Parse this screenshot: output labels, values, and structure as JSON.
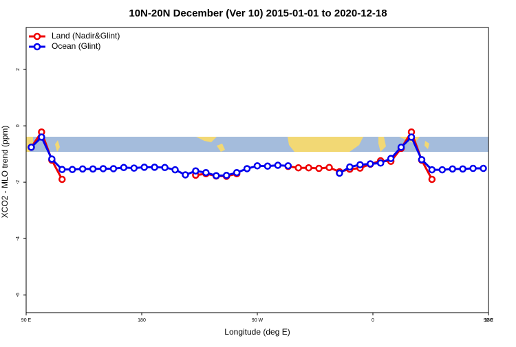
{
  "chart_data": {
    "type": "line",
    "title": "10N-20N December (Ver 10)   2015-01-01 to 2020-12-18",
    "x_label": "Longitude (deg E)",
    "y_label": "XCO2 - MLO trend (ppm)",
    "x": [
      94,
      102,
      110,
      118,
      126,
      134,
      142,
      150,
      158,
      166,
      174,
      182,
      190,
      198,
      206,
      214,
      222,
      230,
      238,
      246,
      254,
      262,
      270,
      278,
      286,
      294,
      302,
      310,
      318,
      326,
      334,
      342,
      350,
      358,
      366,
      374,
      382,
      390,
      398,
      406,
      414,
      422,
      430,
      438,
      446
    ],
    "series": [
      {
        "name": "Land (Nadir&Glint)",
        "color": "#ee0000",
        "values": [
          -0.76,
          -0.22,
          -1.22,
          -1.9,
          null,
          null,
          null,
          null,
          null,
          null,
          null,
          null,
          null,
          null,
          null,
          null,
          -1.75,
          -1.7,
          -1.78,
          -1.79,
          -1.7,
          null,
          null,
          null,
          null,
          -1.44,
          -1.49,
          -1.49,
          -1.51,
          -1.48,
          -1.63,
          -1.54,
          -1.5,
          -1.36,
          -1.24,
          -1.26,
          -0.8,
          -0.22,
          -1.22,
          -1.9,
          null,
          null,
          null,
          null,
          null
        ]
      },
      {
        "name": "Ocean (Glint)",
        "color": "#0000ee",
        "values": [
          -0.76,
          -0.4,
          -1.18,
          -1.55,
          -1.55,
          -1.53,
          -1.53,
          -1.52,
          -1.52,
          -1.48,
          -1.5,
          -1.47,
          -1.47,
          -1.48,
          -1.56,
          -1.74,
          -1.6,
          -1.66,
          -1.77,
          -1.76,
          -1.66,
          -1.52,
          -1.42,
          -1.43,
          -1.4,
          -1.42,
          null,
          null,
          null,
          null,
          -1.68,
          -1.46,
          -1.38,
          -1.35,
          -1.32,
          -1.16,
          -0.76,
          -0.4,
          -1.2,
          -1.56,
          -1.56,
          -1.53,
          -1.53,
          -1.51,
          -1.51
        ]
      }
    ],
    "xlim": [
      90,
      450
    ],
    "xticks": [
      {
        "value": 90,
        "label": "90 E"
      },
      180,
      {
        "value": 270,
        "label": "90 W"
      },
      {
        "value": 360,
        "label": "0"
      },
      {
        "value": 450,
        "label": "90 E"
      },
      {
        "value": 540,
        "label": "180"
      }
    ],
    "ylim": [
      -6.63,
      3.49
    ],
    "yticks": [
      -6,
      -4,
      -2,
      0,
      2
    ],
    "legend": "top-left"
  }
}
